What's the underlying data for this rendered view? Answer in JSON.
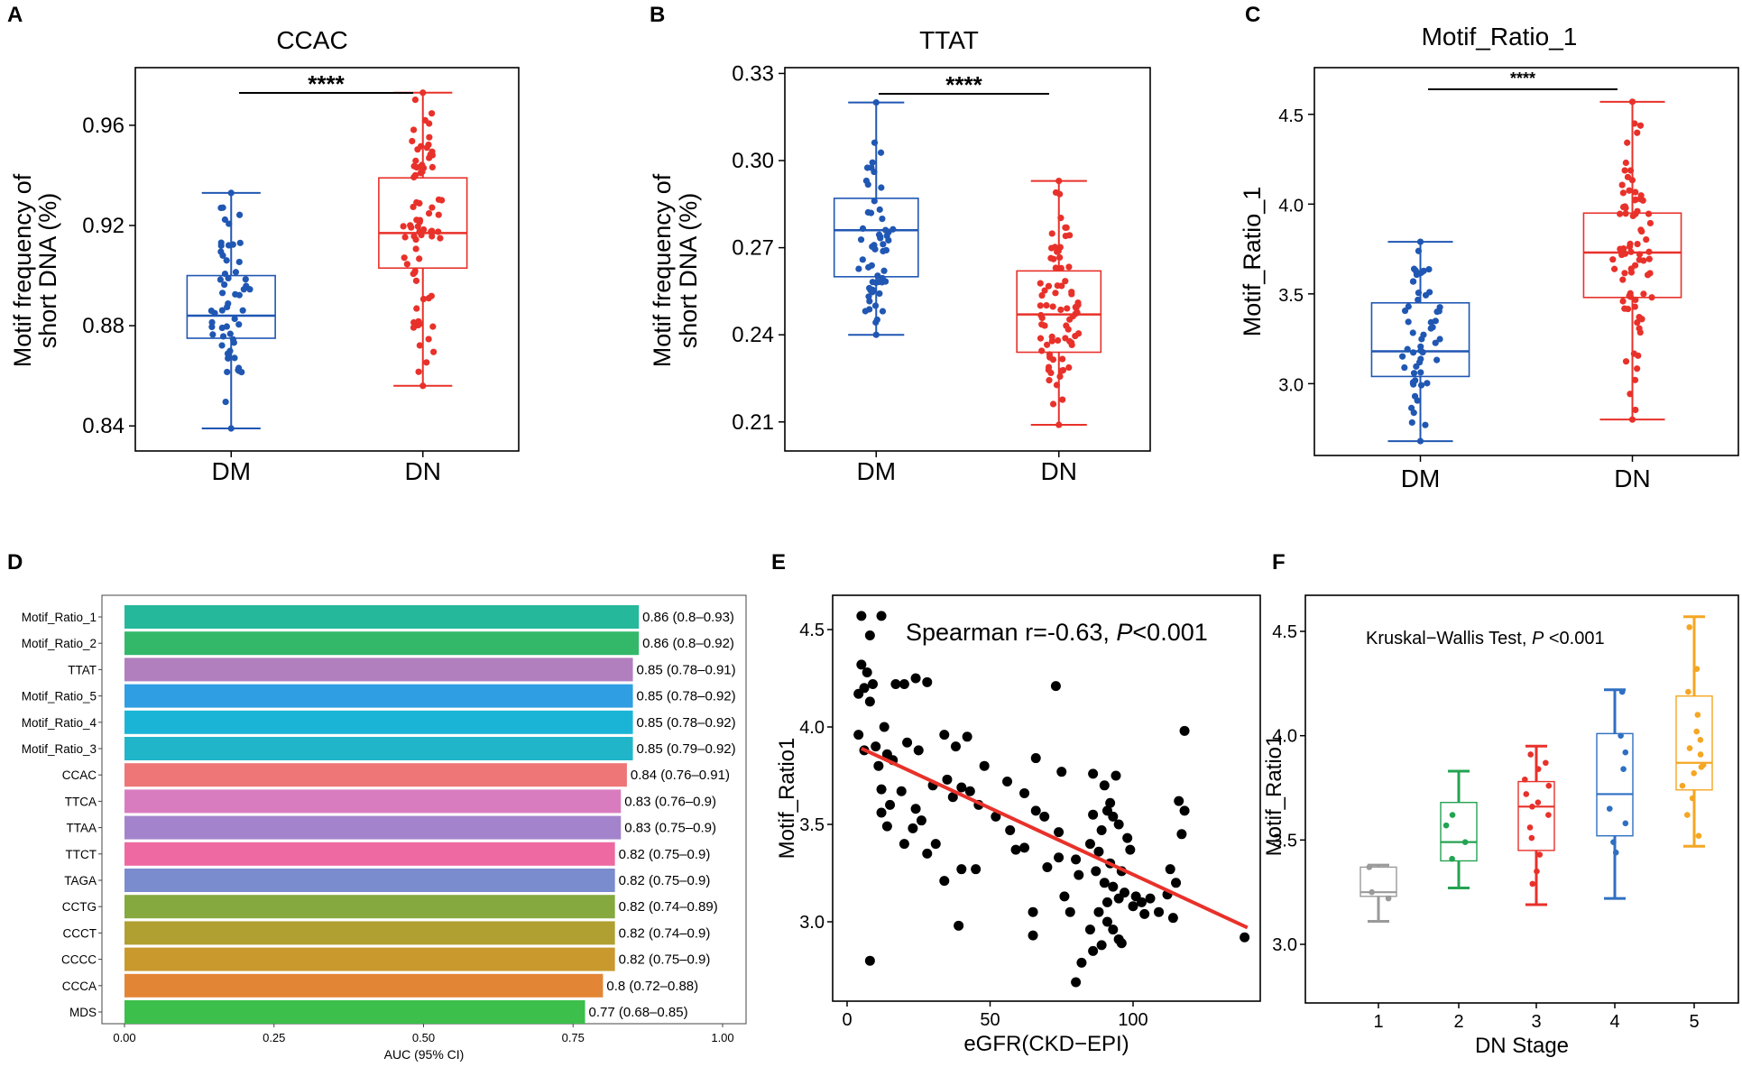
{
  "panels": {
    "A": {
      "letter": "A"
    },
    "B": {
      "letter": "B"
    },
    "C": {
      "letter": "C"
    },
    "D": {
      "letter": "D"
    },
    "E": {
      "letter": "E"
    },
    "F": {
      "letter": "F"
    }
  },
  "chart_data": [
    {
      "id": "A",
      "type": "box",
      "title": "CCAC",
      "ylabel_lines": [
        "Motif frequency of",
        "short DNA (%)"
      ],
      "categories": [
        "DM",
        "DN"
      ],
      "colors": [
        "#2057b3",
        "#e8312a"
      ],
      "yticks": [
        0.84,
        0.88,
        0.92,
        0.96
      ],
      "ytick_labels": [
        "0.84",
        "0.88",
        "0.92",
        "0.96"
      ],
      "ylim": [
        0.83,
        0.983
      ],
      "boxes": [
        {
          "min": 0.839,
          "q1": 0.875,
          "median": 0.884,
          "q3": 0.9,
          "max": 0.933
        },
        {
          "min": 0.856,
          "q1": 0.903,
          "median": 0.917,
          "q3": 0.939,
          "max": 0.973
        }
      ],
      "significance": "****"
    },
    {
      "id": "B",
      "type": "box",
      "title": "TTAT",
      "ylabel_lines": [
        "Motif frequency of",
        "short DNA (%)"
      ],
      "categories": [
        "DM",
        "DN"
      ],
      "colors": [
        "#2057b3",
        "#e8312a"
      ],
      "yticks": [
        0.21,
        0.24,
        0.27,
        0.3,
        0.33
      ],
      "ytick_labels": [
        "0.21",
        "0.24",
        "0.27",
        "0.30",
        "0.33"
      ],
      "ylim": [
        0.2,
        0.332
      ],
      "boxes": [
        {
          "min": 0.24,
          "q1": 0.26,
          "median": 0.276,
          "q3": 0.287,
          "max": 0.32
        },
        {
          "min": 0.209,
          "q1": 0.234,
          "median": 0.247,
          "q3": 0.262,
          "max": 0.293
        }
      ],
      "significance": "****"
    },
    {
      "id": "C",
      "type": "box",
      "title": "Motif_Ratio_1",
      "ylabel_lines": [
        "Motif_Ratio_1"
      ],
      "categories": [
        "DM",
        "DN"
      ],
      "colors": [
        "#2057b3",
        "#e8312a"
      ],
      "yticks": [
        3.0,
        3.5,
        4.0,
        4.5
      ],
      "ytick_labels": [
        "3.0",
        "3.5",
        "4.0",
        "4.5"
      ],
      "ylim": [
        2.6,
        4.76
      ],
      "boxes": [
        {
          "min": 2.68,
          "q1": 3.04,
          "median": 3.18,
          "q3": 3.45,
          "max": 3.79
        },
        {
          "min": 2.8,
          "q1": 3.48,
          "median": 3.73,
          "q3": 3.95,
          "max": 4.57
        }
      ],
      "significance": "****"
    },
    {
      "id": "D",
      "type": "bar",
      "orientation": "horizontal",
      "xlabel": "AUC (95% CI)",
      "xticks": [
        0.0,
        0.25,
        0.5,
        0.75,
        1.0
      ],
      "xtick_labels": [
        "0.00",
        "0.25",
        "0.50",
        "0.75",
        "1.00"
      ],
      "xlim": [
        0,
        1
      ],
      "categories": [
        "Motif_Ratio_1",
        "Motif_Ratio_2",
        "TTAT",
        "Motif_Ratio_5",
        "Motif_Ratio_4",
        "Motif_Ratio_3",
        "CCAC",
        "TTCA",
        "TTAA",
        "TTCT",
        "TAGA",
        "CCTG",
        "CCCT",
        "CCCC",
        "CCCA",
        "MDS"
      ],
      "values": [
        0.86,
        0.86,
        0.85,
        0.85,
        0.85,
        0.85,
        0.84,
        0.83,
        0.83,
        0.82,
        0.82,
        0.82,
        0.82,
        0.82,
        0.8,
        0.77
      ],
      "labels": [
        "0.86 (0.8–0.93)",
        "0.86 (0.8–0.92)",
        "0.85 (0.78–0.91)",
        "0.85 (0.78–0.92)",
        "0.85 (0.78–0.92)",
        "0.85 (0.79–0.92)",
        "0.84 (0.76–0.91)",
        "0.83 (0.76–0.9)",
        "0.83 (0.75–0.9)",
        "0.82 (0.75–0.9)",
        "0.82 (0.75–0.9)",
        "0.82 (0.74–0.89)",
        "0.82 (0.74–0.9)",
        "0.82 (0.75–0.9)",
        "0.8 (0.72–0.88)",
        "0.77 (0.68–0.85)"
      ],
      "colors": [
        "#26b89b",
        "#33b86a",
        "#b17fbe",
        "#2f9ee3",
        "#1ab5d6",
        "#21b5c9",
        "#ee7677",
        "#d97cbf",
        "#a384cc",
        "#ee69a1",
        "#7a8bce",
        "#85a83f",
        "#b0a032",
        "#c9992d",
        "#e28535",
        "#3cbf4b"
      ]
    },
    {
      "id": "E",
      "type": "scatter",
      "annotation_prefix": "Spearman r=-0.63, ",
      "annotation_p": "P",
      "annotation_suffix": "<0.001",
      "xlabel": "eGFR(CKD−EPI)",
      "ylabel": "Motif_Ratio1",
      "xticks": [
        0,
        50,
        100
      ],
      "xtick_labels": [
        "0",
        "50",
        "100"
      ],
      "yticks": [
        3.0,
        3.5,
        4.0,
        4.5
      ],
      "ytick_labels": [
        "3.0",
        "3.5",
        "4.0",
        "4.5"
      ],
      "xlim": [
        -5,
        145
      ],
      "ylim": [
        2.6,
        4.65
      ],
      "fit_line": [
        [
          5,
          3.89
        ],
        [
          140,
          2.97
        ]
      ],
      "fit_color": "#e8312a",
      "points": [
        [
          5,
          4.57
        ],
        [
          12,
          4.57
        ],
        [
          8,
          4.47
        ],
        [
          5,
          4.32
        ],
        [
          9,
          4.22
        ],
        [
          6,
          4.2
        ],
        [
          4,
          4.17
        ],
        [
          8,
          4.13
        ],
        [
          7,
          4.28
        ],
        [
          20,
          4.22
        ],
        [
          24,
          4.25
        ],
        [
          28,
          4.23
        ],
        [
          17,
          4.22
        ],
        [
          13,
          4.0
        ],
        [
          4,
          3.96
        ],
        [
          10,
          3.9
        ],
        [
          6,
          3.88
        ],
        [
          14,
          3.86
        ],
        [
          11,
          3.8
        ],
        [
          16,
          3.83
        ],
        [
          21,
          3.92
        ],
        [
          25,
          3.88
        ],
        [
          34,
          3.96
        ],
        [
          38,
          3.9
        ],
        [
          42,
          3.95
        ],
        [
          48,
          3.8
        ],
        [
          66,
          3.84
        ],
        [
          75,
          3.77
        ],
        [
          86,
          3.76
        ],
        [
          90,
          3.7
        ],
        [
          94,
          3.75
        ],
        [
          12,
          3.68
        ],
        [
          15,
          3.6
        ],
        [
          19,
          3.67
        ],
        [
          24,
          3.58
        ],
        [
          26,
          3.52
        ],
        [
          30,
          3.7
        ],
        [
          35,
          3.73
        ],
        [
          37,
          3.64
        ],
        [
          40,
          3.69
        ],
        [
          43,
          3.67
        ],
        [
          46,
          3.6
        ],
        [
          52,
          3.54
        ],
        [
          56,
          3.72
        ],
        [
          62,
          3.66
        ],
        [
          66,
          3.57
        ],
        [
          12,
          3.56
        ],
        [
          14,
          3.49
        ],
        [
          20,
          3.4
        ],
        [
          23,
          3.48
        ],
        [
          31,
          3.4
        ],
        [
          28,
          3.35
        ],
        [
          34,
          3.21
        ],
        [
          40,
          3.27
        ],
        [
          45,
          3.27
        ],
        [
          57,
          3.47
        ],
        [
          59,
          3.37
        ],
        [
          62,
          3.38
        ],
        [
          69,
          3.54
        ],
        [
          74,
          3.46
        ],
        [
          86,
          3.55
        ],
        [
          91,
          3.57
        ],
        [
          92,
          3.61
        ],
        [
          93,
          3.54
        ],
        [
          95,
          3.5
        ],
        [
          89,
          3.47
        ],
        [
          85,
          3.4
        ],
        [
          88,
          3.36
        ],
        [
          92,
          3.3
        ],
        [
          87,
          3.26
        ],
        [
          96,
          3.26
        ],
        [
          98,
          3.43
        ],
        [
          99,
          3.37
        ],
        [
          90,
          3.2
        ],
        [
          93,
          3.18
        ],
        [
          97,
          3.15
        ],
        [
          95,
          3.12
        ],
        [
          91,
          3.1
        ],
        [
          88,
          3.05
        ],
        [
          101,
          3.13
        ],
        [
          103,
          3.1
        ],
        [
          106,
          3.12
        ],
        [
          104,
          3.04
        ],
        [
          100,
          3.08
        ],
        [
          109,
          3.05
        ],
        [
          112,
          3.14
        ],
        [
          113,
          3.27
        ],
        [
          115,
          3.2
        ],
        [
          118,
          3.57
        ],
        [
          116,
          3.62
        ],
        [
          117,
          3.45
        ],
        [
          81,
          3.24
        ],
        [
          80,
          3.32
        ],
        [
          74,
          3.33
        ],
        [
          70,
          3.28
        ],
        [
          76,
          3.13
        ],
        [
          91,
          3.0
        ],
        [
          93,
          2.96
        ],
        [
          95,
          2.91
        ],
        [
          96,
          2.89
        ],
        [
          89,
          2.88
        ],
        [
          85,
          2.96
        ],
        [
          86,
          2.85
        ],
        [
          82,
          2.79
        ],
        [
          78,
          3.05
        ],
        [
          65,
          3.05
        ],
        [
          65,
          2.93
        ],
        [
          39,
          2.98
        ],
        [
          8,
          2.8
        ],
        [
          73,
          4.21
        ],
        [
          118,
          3.98
        ],
        [
          139,
          2.92
        ],
        [
          80,
          2.69
        ],
        [
          114,
          3.02
        ]
      ]
    },
    {
      "id": "F",
      "type": "box",
      "annotation_prefix": "Kruskal−Wallis Test, ",
      "annotation_p": "P",
      "annotation_suffix": " <0.001",
      "xlabel": "DN Stage",
      "ylabel": "Motif_Ratio1",
      "categories": [
        "1",
        "2",
        "3",
        "4",
        "5"
      ],
      "colors": [
        "#9a9a9a",
        "#24a352",
        "#e8312a",
        "#2f6fc2",
        "#f5a623"
      ],
      "yticks": [
        3.0,
        3.5,
        4.0,
        4.5
      ],
      "ytick_labels": [
        "3.0",
        "3.5",
        "4.0",
        "4.5"
      ],
      "ylim": [
        2.74,
        4.65
      ],
      "boxes": [
        {
          "min": 3.11,
          "q1": 3.23,
          "median": 3.25,
          "q3": 3.37,
          "max": 3.38
        },
        {
          "min": 3.27,
          "q1": 3.4,
          "median": 3.49,
          "q3": 3.68,
          "max": 3.83
        },
        {
          "min": 3.19,
          "q1": 3.45,
          "median": 3.66,
          "q3": 3.78,
          "max": 3.95
        },
        {
          "min": 3.22,
          "q1": 3.52,
          "median": 3.72,
          "q3": 4.01,
          "max": 4.22
        },
        {
          "min": 3.47,
          "q1": 3.74,
          "median": 3.87,
          "q3": 4.19,
          "max": 4.57
        }
      ],
      "jitter_points": [
        [
          3.25,
          3.37,
          3.22
        ],
        [
          3.49,
          3.57,
          3.41,
          3.62
        ],
        [
          3.91,
          3.87,
          3.84,
          3.79,
          3.76,
          3.72,
          3.68,
          3.66,
          3.62,
          3.56,
          3.51,
          3.43,
          3.35,
          3.29
        ],
        [
          4.21,
          4.0,
          3.92,
          3.84,
          3.65,
          3.58,
          3.49,
          3.44
        ],
        [
          4.52,
          4.32,
          4.21,
          4.1,
          4.02,
          3.98,
          3.94,
          3.91,
          3.86,
          3.85,
          3.82,
          3.76,
          3.7,
          3.62,
          3.52
        ]
      ]
    }
  ]
}
